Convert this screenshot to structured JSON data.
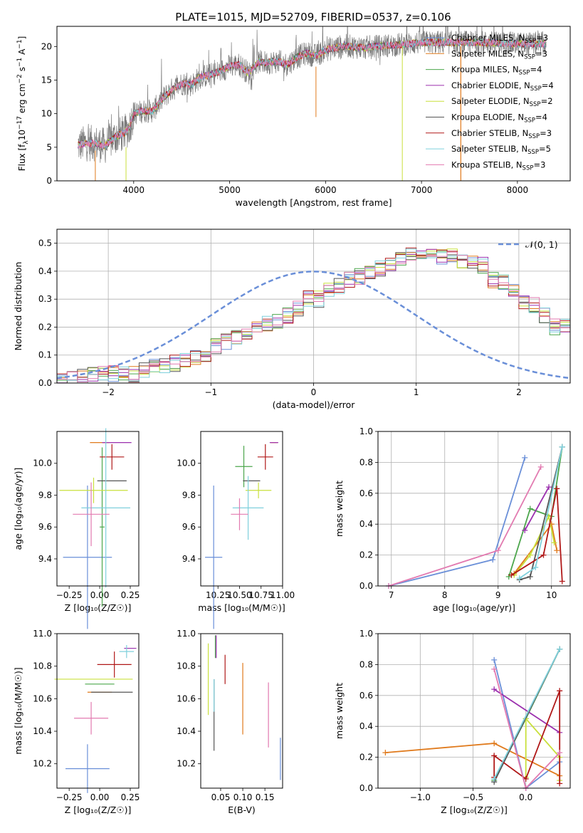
{
  "figure_title": "PLATE=1015, MJD=52709, FIBERID=0537, z=0.106",
  "model_colors": [
    "#6a8fd8",
    "#e07a1c",
    "#4ca64c",
    "#9b2fae",
    "#c9e03c",
    "#555555",
    "#b01818",
    "#7fd0dc",
    "#e27ab0"
  ],
  "chart_data": [
    {
      "id": "spectrum",
      "type": "line",
      "xlabel": "wavelength [Angstrom, rest frame]",
      "ylabel_main": "Flux [f",
      "ylabel_sub": "λ",
      "ylabel_mid": "10",
      "ylabel_sup1": "−17",
      "ylabel_rest": " erg cm",
      "ylabel_sup2": "−2",
      "ylabel_rest2": " s",
      "ylabel_sup3": "−1",
      "ylabel_rest3": " A",
      "ylabel_sup4": "−1",
      "ylabel_end": "]",
      "xlim": [
        3200,
        8550
      ],
      "ylim": [
        0,
        23
      ],
      "xticks": [
        "4000",
        "5000",
        "6000",
        "7000",
        "8000"
      ],
      "xtick_values": [
        4000,
        5000,
        6000,
        7000,
        8000
      ],
      "yticks": [
        "0",
        "5",
        "10",
        "15",
        "20"
      ],
      "ytick_values": [
        0,
        5,
        10,
        15,
        20
      ],
      "grid": false,
      "legend_position": "bottom-right",
      "continuum": {
        "x": [
          3420,
          3500,
          3600,
          3700,
          3800,
          3900,
          3950,
          4000,
          4100,
          4200,
          4300,
          4400,
          4500,
          4600,
          4700,
          4800,
          4900,
          5000,
          5100,
          5200,
          5300,
          5400,
          5500,
          5600,
          5700,
          5800,
          5900,
          6000,
          6200,
          6400,
          6600,
          6800,
          7000,
          7200,
          7400,
          7600,
          7800,
          8000,
          8200,
          8300
        ],
        "y": [
          5.3,
          5.6,
          5.6,
          5.2,
          6.5,
          7.1,
          7.8,
          10.0,
          10.4,
          10.4,
          12.2,
          13.6,
          14.5,
          14.3,
          15.5,
          15.8,
          16.3,
          17.1,
          17.3,
          16.0,
          17.7,
          17.6,
          17.8,
          17.3,
          18.4,
          19.0,
          18.6,
          19.5,
          20.1,
          19.8,
          20.1,
          20.3,
          20.6,
          20.6,
          20.6,
          20.6,
          20.5,
          20.4,
          20.4,
          20.4
        ]
      },
      "series": [
        {
          "name_a": "Chabrier MILES, N",
          "name_sub": "SSP",
          "name_b": "=3"
        },
        {
          "name_a": "Salpeter MILES, N",
          "name_sub": "SSP",
          "name_b": "=3"
        },
        {
          "name_a": "Kroupa MILES, N",
          "name_sub": "SSP",
          "name_b": "=4"
        },
        {
          "name_a": "Chabrier ELODIE, N",
          "name_sub": "SSP",
          "name_b": "=4"
        },
        {
          "name_a": "Salpeter ELODIE, N",
          "name_sub": "SSP",
          "name_b": "=2"
        },
        {
          "name_a": "Kroupa ELODIE, N",
          "name_sub": "SSP",
          "name_b": "=4"
        },
        {
          "name_a": "Chabrier STELIB, N",
          "name_sub": "SSP",
          "name_b": "=3"
        },
        {
          "name_a": "Salpeter STELIB, N",
          "name_sub": "SSP",
          "name_b": "=5"
        },
        {
          "name_a": "Kroupa STELIB, N",
          "name_sub": "SSP",
          "name_b": "=3"
        }
      ]
    },
    {
      "id": "residual-histogram",
      "type": "step",
      "xlabel": "(data-model)/error",
      "ylabel": "Normed distribution",
      "xlim": [
        -2.5,
        2.5
      ],
      "ylim": [
        0,
        0.55
      ],
      "xticks": [
        "−2",
        "−1",
        "0",
        "1",
        "2"
      ],
      "xtick_values": [
        -2,
        -1,
        0,
        1,
        2
      ],
      "yticks": [
        "0.0",
        "0.1",
        "0.2",
        "0.3",
        "0.4",
        "0.5"
      ],
      "ytick_values": [
        0,
        0.1,
        0.2,
        0.3,
        0.4,
        0.5
      ],
      "grid": true,
      "legend_position": "top-right",
      "legend_label": "𝒩(0, 1)",
      "bin_width": 0.1,
      "bin_start": -2.5,
      "base_density": [
        0.01,
        0.012,
        0.02,
        0.03,
        0.04,
        0.035,
        0.04,
        0.03,
        0.05,
        0.055,
        0.06,
        0.07,
        0.08,
        0.09,
        0.1,
        0.13,
        0.15,
        0.16,
        0.18,
        0.2,
        0.21,
        0.22,
        0.24,
        0.27,
        0.3,
        0.3,
        0.33,
        0.35,
        0.37,
        0.38,
        0.4,
        0.41,
        0.43,
        0.44,
        0.46,
        0.45,
        0.47,
        0.45,
        0.46,
        0.43,
        0.43,
        0.42,
        0.37,
        0.36,
        0.33,
        0.29,
        0.28,
        0.24,
        0.2,
        0.2
      ]
    },
    {
      "id": "age-vs-metallicity",
      "type": "errorbar",
      "xlabel": "Z [log₁₀(Z/Z☉)]",
      "ylabel": "age  [log₁₀(age/yr)]",
      "xlim": [
        -0.35,
        0.32
      ],
      "ylim": [
        9.23,
        10.2
      ],
      "xticks": [
        "−0.25",
        "0.00",
        "0.25"
      ],
      "xtick_values": [
        -0.25,
        0,
        0.25
      ],
      "yticks": [
        "9.4",
        "9.6",
        "9.8",
        "10.0"
      ],
      "ytick_values": [
        9.4,
        9.6,
        9.8,
        10.0
      ],
      "points": [
        {
          "x": -0.1,
          "xerr": 0.2,
          "y": 9.41,
          "yerr": 0.45
        },
        {
          "x": 0.0,
          "xerr": 0.08,
          "y": 10.13,
          "yerr": 0.0
        },
        {
          "x": 0.02,
          "xerr": 0.02,
          "y": 9.6,
          "yerr": 0.5
        },
        {
          "x": 0.14,
          "xerr": 0.12,
          "y": 10.13,
          "yerr": 0.0
        },
        {
          "x": -0.05,
          "xerr": 0.28,
          "y": 9.83,
          "yerr": 0.08
        },
        {
          "x": 0.1,
          "xerr": 0.12,
          "y": 9.89,
          "yerr": 0.0
        },
        {
          "x": 0.1,
          "xerr": 0.1,
          "y": 10.04,
          "yerr": 0.08
        },
        {
          "x": 0.05,
          "xerr": 0.2,
          "y": 9.72,
          "yerr": 0.5
        },
        {
          "x": -0.07,
          "xerr": 0.15,
          "y": 9.68,
          "yerr": 0.2
        }
      ]
    },
    {
      "id": "age-vs-mass",
      "type": "errorbar",
      "xlabel": "mass [log₁₀(M/M☉)]",
      "ylabel": "",
      "xlim": [
        10.05,
        11.0
      ],
      "ylim": [
        9.23,
        10.2
      ],
      "xticks": [
        "10.25",
        "10.50",
        "10.75",
        "11.00"
      ],
      "xtick_values": [
        10.25,
        10.5,
        10.75,
        11.0
      ],
      "yticks": [
        "9.4",
        "9.6",
        "9.8",
        "10.0"
      ],
      "ytick_values": [
        9.4,
        9.6,
        9.8,
        10.0
      ],
      "points": [
        {
          "x": 10.2,
          "xerr": 0.1,
          "y": 9.41,
          "yerr": 0.45
        },
        {
          "x": 10.9,
          "xerr": 0.04,
          "y": 10.13,
          "yerr": 0.0
        },
        {
          "x": 10.55,
          "xerr": 0.1,
          "y": 9.98,
          "yerr": 0.13
        },
        {
          "x": 10.9,
          "xerr": 0.05,
          "y": 10.13,
          "yerr": 0.0
        },
        {
          "x": 10.72,
          "xerr": 0.15,
          "y": 9.83,
          "yerr": 0.05
        },
        {
          "x": 10.64,
          "xerr": 0.1,
          "y": 9.89,
          "yerr": 0.0
        },
        {
          "x": 10.8,
          "xerr": 0.09,
          "y": 10.04,
          "yerr": 0.08
        },
        {
          "x": 10.6,
          "xerr": 0.18,
          "y": 9.72,
          "yerr": 0.2
        },
        {
          "x": 10.5,
          "xerr": 0.1,
          "y": 9.68,
          "yerr": 0.1
        }
      ]
    },
    {
      "id": "mass-weight-vs-age",
      "type": "line",
      "xlabel": "age  [log₁₀(age/yr)]",
      "ylabel": "mass weight",
      "xlim": [
        6.75,
        10.35
      ],
      "ylim": [
        0,
        1
      ],
      "xticks": [
        "7",
        "8",
        "9",
        "10"
      ],
      "xtick_values": [
        7,
        8,
        9,
        10
      ],
      "yticks": [
        "0.0",
        "0.2",
        "0.4",
        "0.6",
        "0.8",
        "1.0"
      ],
      "ytick_values": [
        0,
        0.2,
        0.4,
        0.6,
        0.8,
        1.0
      ],
      "grid": true,
      "series": [
        {
          "x": [
            6.95,
            8.9,
            9.5
          ],
          "y": [
            0.0,
            0.17,
            0.83
          ]
        },
        {
          "x": [
            9.3,
            10.0,
            10.1
          ],
          "y": [
            0.08,
            0.4,
            0.23
          ]
        },
        {
          "x": [
            9.2,
            9.6,
            10.0,
            10.2
          ],
          "y": [
            0.06,
            0.5,
            0.45,
            0.9
          ]
        },
        {
          "x": [
            9.5,
            9.95
          ],
          "y": [
            0.36,
            0.64
          ]
        },
        {
          "x": [
            9.3,
            9.6,
            9.95,
            10.05
          ],
          "y": [
            0.07,
            0.2,
            0.45,
            0.28
          ]
        },
        {
          "x": [
            9.4,
            9.6,
            10.2
          ],
          "y": [
            0.04,
            0.06,
            0.9
          ]
        },
        {
          "x": [
            9.25,
            9.85,
            10.1,
            10.2
          ],
          "y": [
            0.07,
            0.2,
            0.63,
            0.03
          ]
        },
        {
          "x": [
            9.4,
            9.7,
            10.2
          ],
          "y": [
            0.05,
            0.12,
            0.9
          ]
        },
        {
          "x": [
            6.95,
            9.0,
            9.8
          ],
          "y": [
            0.0,
            0.23,
            0.77
          ]
        }
      ]
    },
    {
      "id": "mass-vs-metallicity",
      "type": "errorbar",
      "xlabel": "Z [log₁₀(Z/Z☉)]",
      "ylabel": "mass [log₁₀(M/M☉)]",
      "xlim": [
        -0.35,
        0.32
      ],
      "ylim": [
        10.05,
        11.0
      ],
      "xticks": [
        "−0.25",
        "0.00",
        "0.25"
      ],
      "xtick_values": [
        -0.25,
        0,
        0.25
      ],
      "yticks": [
        "10.2",
        "10.4",
        "10.6",
        "10.8",
        "11.0"
      ],
      "ytick_values": [
        10.2,
        10.4,
        10.6,
        10.8,
        11.0
      ],
      "points": [
        {
          "x": -0.1,
          "xerr": 0.18,
          "y": 10.17,
          "yerr": 0.15
        },
        {
          "x": 0.0,
          "xerr": 0.1,
          "y": 10.64,
          "yerr": 0.0
        },
        {
          "x": 0.0,
          "xerr": 0.12,
          "y": 10.69,
          "yerr": 0.0
        },
        {
          "x": 0.25,
          "xerr": 0.05,
          "y": 10.91,
          "yerr": 0.0
        },
        {
          "x": -0.05,
          "xerr": 0.32,
          "y": 10.72,
          "yerr": 0.0
        },
        {
          "x": 0.1,
          "xerr": 0.17,
          "y": 10.64,
          "yerr": 0.0
        },
        {
          "x": 0.12,
          "xerr": 0.14,
          "y": 10.81,
          "yerr": 0.08
        },
        {
          "x": 0.22,
          "xerr": 0.06,
          "y": 10.89,
          "yerr": 0.04
        },
        {
          "x": -0.07,
          "xerr": 0.14,
          "y": 10.48,
          "yerr": 0.1
        }
      ]
    },
    {
      "id": "mass-vs-extinction",
      "type": "errorbar",
      "xlabel": "E(B-V)",
      "ylabel": "",
      "xlim": [
        0.005,
        0.19
      ],
      "ylim": [
        10.05,
        11.0
      ],
      "xticks": [
        "0.05",
        "0.10",
        "0.15"
      ],
      "xtick_values": [
        0.05,
        0.1,
        0.15
      ],
      "yticks": [
        "10.2",
        "10.4",
        "10.6",
        "10.8",
        "11.0"
      ],
      "ytick_values": [
        10.2,
        10.4,
        10.6,
        10.8,
        11.0
      ],
      "points": [
        {
          "x": 0.185,
          "xerr": 0.0,
          "y": 10.23,
          "yerr": 0.13
        },
        {
          "x": 0.1,
          "xerr": 0.0,
          "y": 10.6,
          "yerr": 0.22
        },
        {
          "x": 0.038,
          "xerr": 0.0,
          "y": 10.92,
          "yerr": 0.07
        },
        {
          "x": 0.04,
          "xerr": 0.0,
          "y": 10.92,
          "yerr": 0.07
        },
        {
          "x": 0.022,
          "xerr": 0.0,
          "y": 10.72,
          "yerr": 0.22
        },
        {
          "x": 0.035,
          "xerr": 0.0,
          "y": 10.5,
          "yerr": 0.22
        },
        {
          "x": 0.06,
          "xerr": 0.0,
          "y": 10.78,
          "yerr": 0.09
        },
        {
          "x": 0.035,
          "xerr": 0.0,
          "y": 10.62,
          "yerr": 0.1
        },
        {
          "x": 0.158,
          "xerr": 0.0,
          "y": 10.5,
          "yerr": 0.2
        }
      ]
    },
    {
      "id": "mass-weight-vs-metallicity",
      "type": "line",
      "xlabel": "Z [log₁₀(Z/Z☉)]",
      "ylabel": "mass weight",
      "xlim": [
        -1.4,
        0.42
      ],
      "ylim": [
        0,
        1
      ],
      "xticks": [
        "−1.0",
        "−0.5",
        "0.0"
      ],
      "xtick_values": [
        -1,
        -0.5,
        0
      ],
      "yticks": [
        "0.0",
        "0.2",
        "0.4",
        "0.6",
        "0.8",
        "1.0"
      ],
      "ytick_values": [
        0,
        0.2,
        0.4,
        0.6,
        0.8,
        1.0
      ],
      "grid": true,
      "series": [
        {
          "x": [
            -0.3,
            0.0,
            0.32
          ],
          "y": [
            0.83,
            0.0,
            0.17
          ]
        },
        {
          "x": [
            -1.33,
            -0.3,
            0.32
          ],
          "y": [
            0.23,
            0.29,
            0.08
          ]
        },
        {
          "x": [
            -0.3,
            0.0,
            0.32
          ],
          "y": [
            0.05,
            0.45,
            0.9
          ]
        },
        {
          "x": [
            -0.3,
            0.32
          ],
          "y": [
            0.64,
            0.36
          ]
        },
        {
          "x": [
            0.0,
            0.0,
            0.32,
            0.32
          ],
          "y": [
            0.07,
            0.45,
            0.2,
            0.05
          ]
        },
        {
          "x": [
            -0.3,
            0.32
          ],
          "y": [
            0.04,
            0.9
          ]
        },
        {
          "x": [
            -0.3,
            -0.3,
            0.0,
            0.32,
            0.32
          ],
          "y": [
            0.07,
            0.21,
            0.06,
            0.63,
            0.03
          ]
        },
        {
          "x": [
            -0.3,
            0.32
          ],
          "y": [
            0.06,
            0.9
          ]
        },
        {
          "x": [
            -0.3,
            0.0,
            0.32
          ],
          "y": [
            0.77,
            0.0,
            0.23
          ]
        }
      ]
    }
  ]
}
